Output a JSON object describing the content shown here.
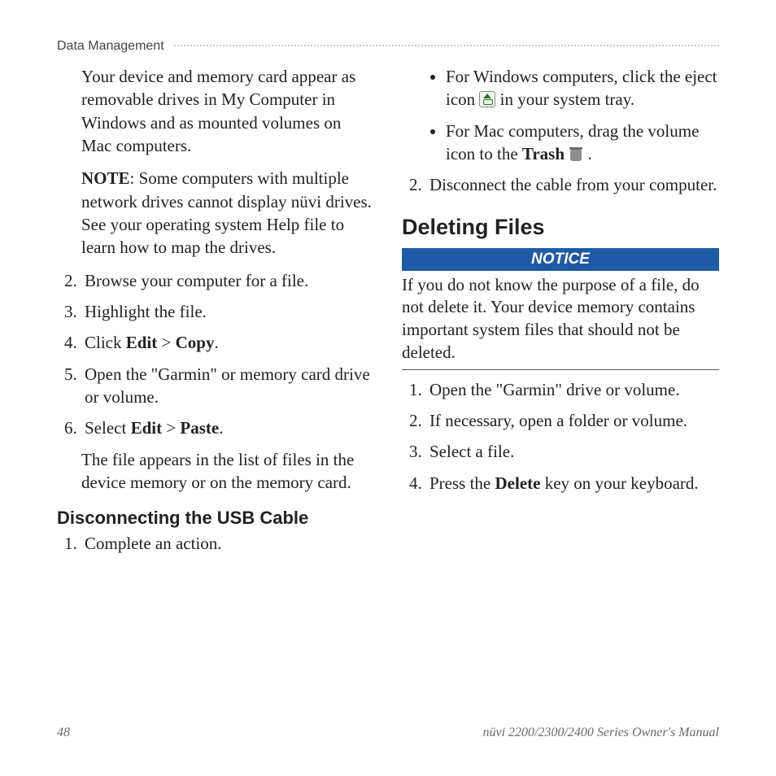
{
  "header": {
    "section": "Data Management"
  },
  "left": {
    "p1": "Your device and memory card appear as removable drives in My Computer in Windows and as mounted volumes on Mac computers.",
    "note_label": "NOTE",
    "note_text": ": Some computers with multiple network drives cannot display nüvi drives. See your operating system Help file to learn how to map the drives.",
    "step2": "Browse your computer for a file.",
    "step3": "Highlight the file.",
    "step4_pre": "Click ",
    "step4_b1": "Edit",
    "step4_mid": " > ",
    "step4_b2": "Copy",
    "step4_post": ".",
    "step5": "Open the \"Garmin\" or memory card drive or volume.",
    "step6_pre": "Select ",
    "step6_b1": "Edit",
    "step6_mid": " > ",
    "step6_b2": "Paste",
    "step6_post": ".",
    "after6": "The file appears in the list of files in the device memory or on the memory card.",
    "sub_h": "Disconnecting the USB Cable",
    "disc_step1": "Complete an action."
  },
  "right": {
    "win_pre": "For Windows computers, click the eject icon ",
    "win_post": " in your system tray.",
    "mac_pre": "For Mac computers, drag the volume icon to the ",
    "mac_bold": "Trash",
    "mac_post": " .",
    "step2": "Disconnect the cable from your computer.",
    "h2": "Deleting Files",
    "notice_label": "NOTICE",
    "notice_body": "If you do not know the purpose of a file, do not delete it. Your device memory contains important system files that should not be deleted.",
    "del_step1": "Open the \"Garmin\" drive or volume.",
    "del_step2": "If necessary, open a folder or volume.",
    "del_step3": "Select a file.",
    "del_step4_pre": "Press the ",
    "del_step4_b": "Delete",
    "del_step4_post": " key on your keyboard."
  },
  "footer": {
    "page": "48",
    "title": "nüvi 2200/2300/2400 Series Owner's Manual"
  },
  "colors": {
    "notice_bg": "#1f5aa8",
    "text": "#222222"
  }
}
